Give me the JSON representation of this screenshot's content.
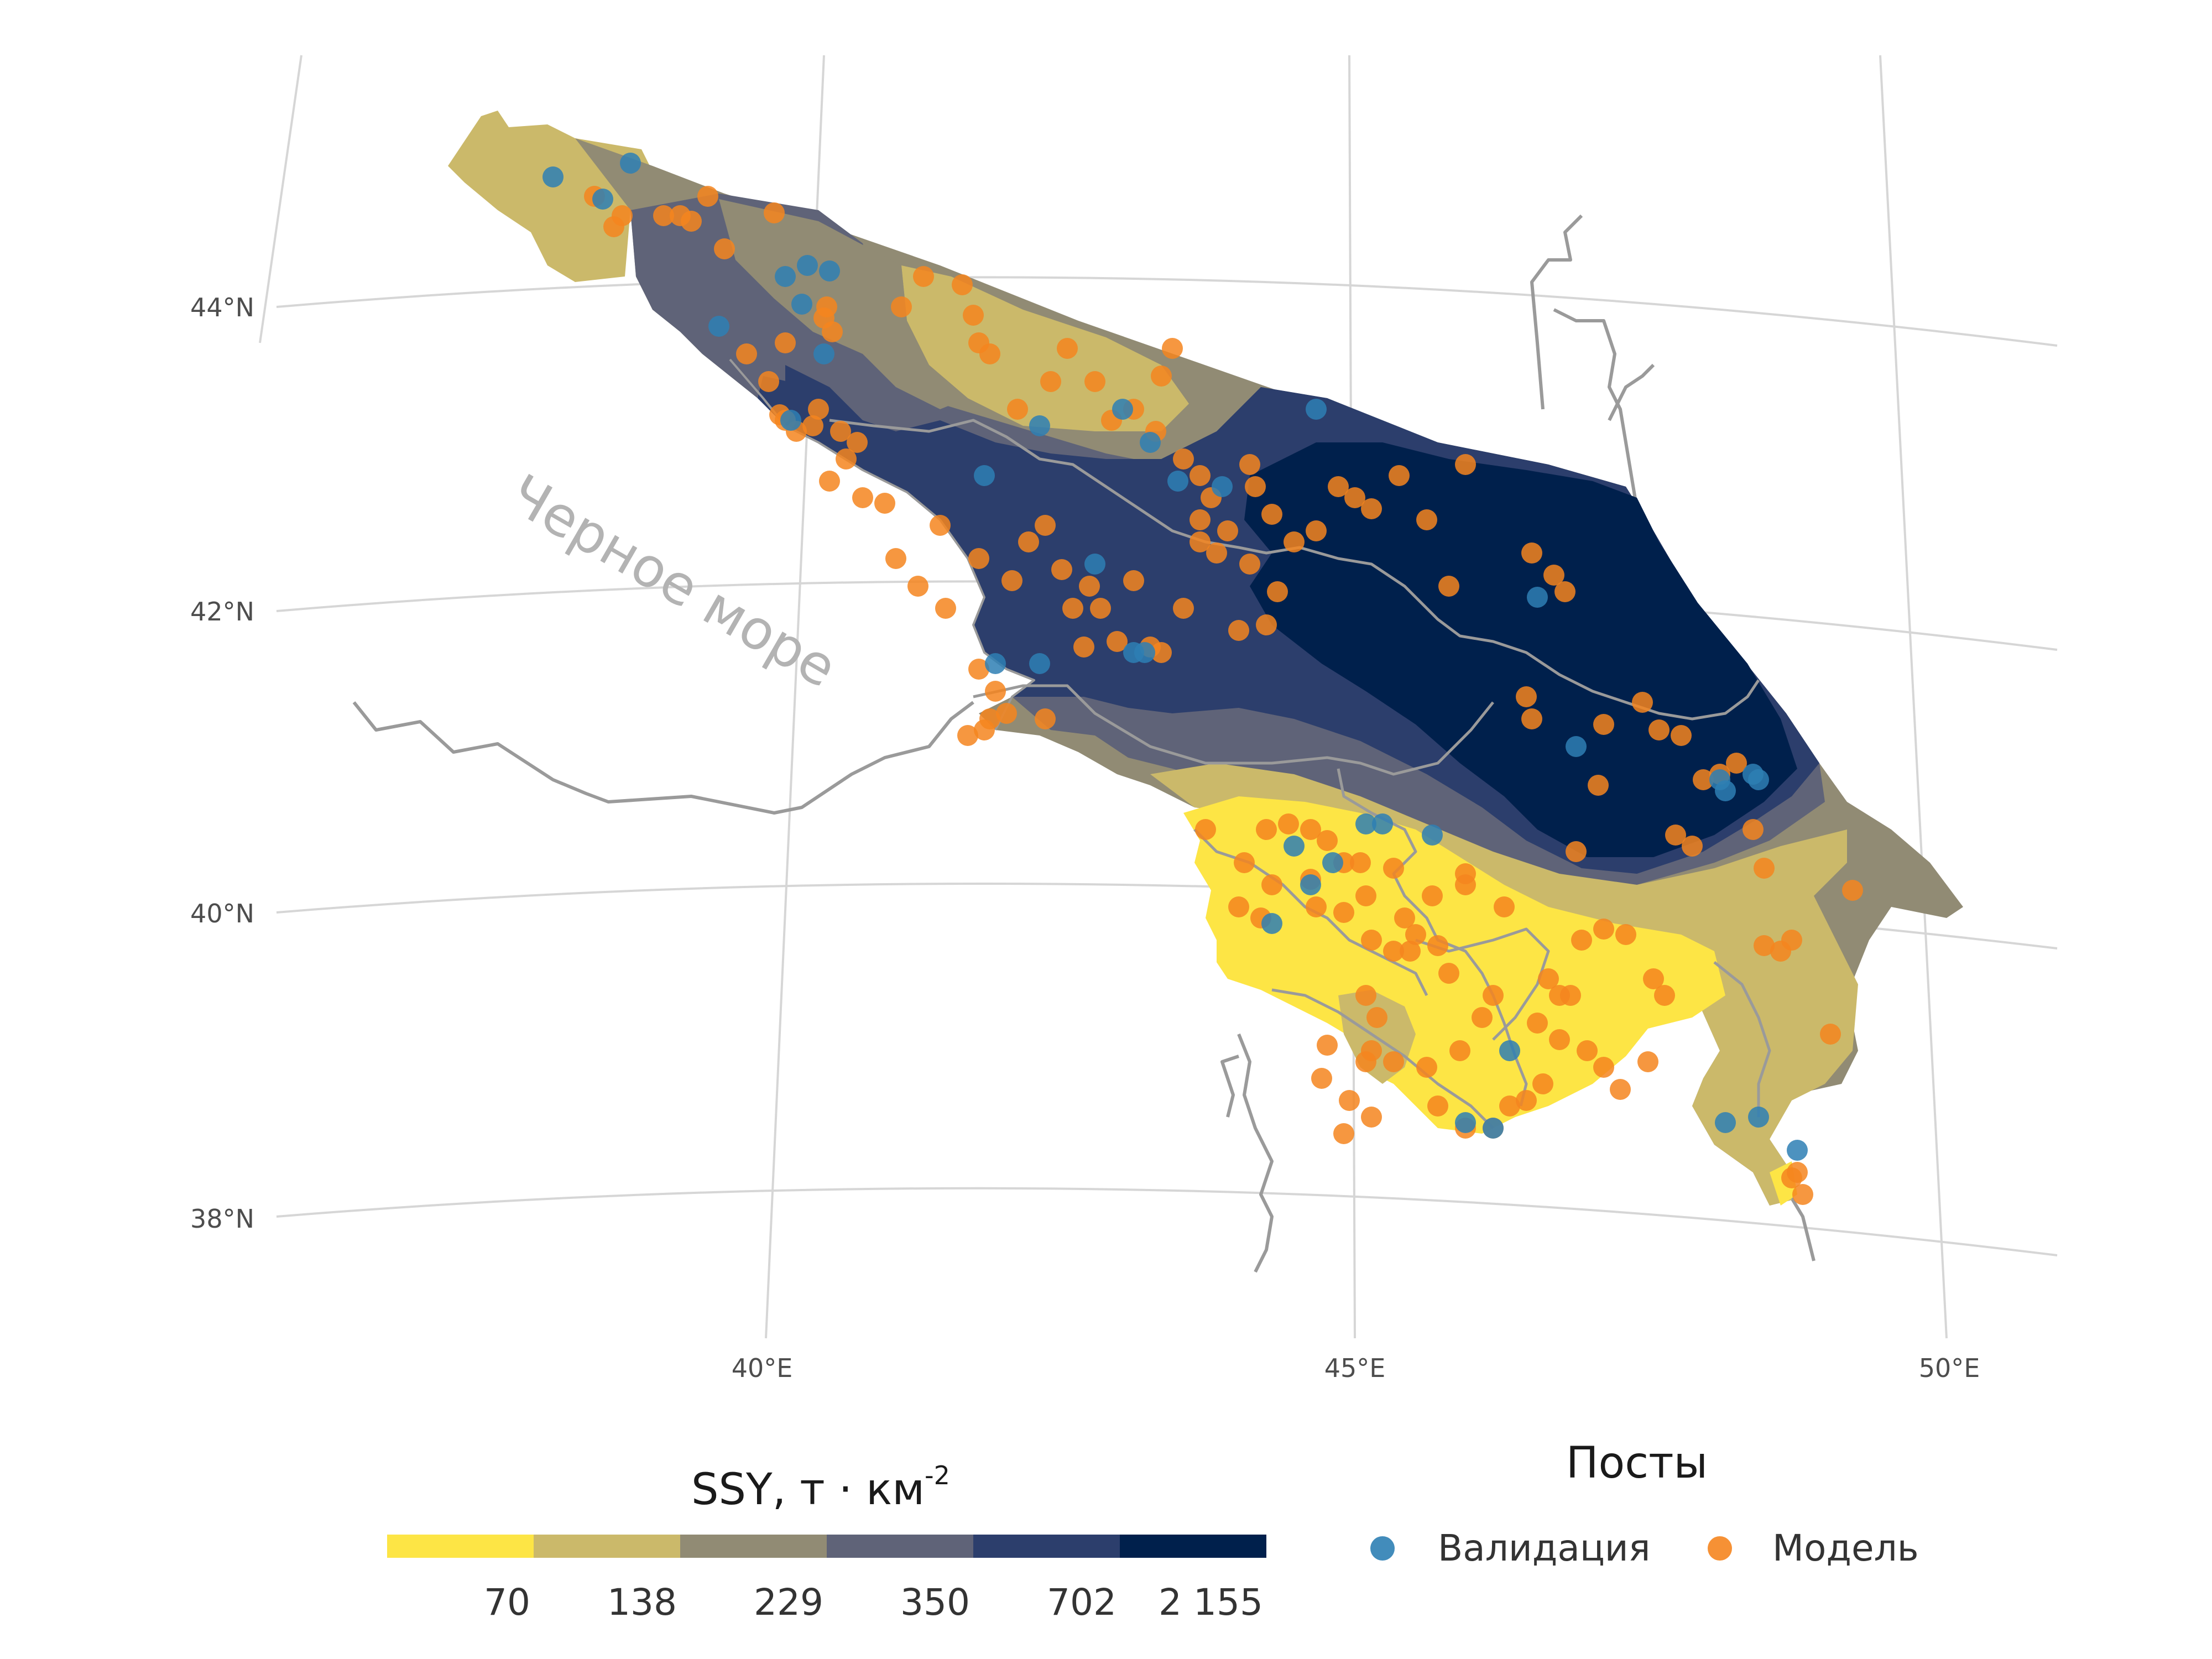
{
  "map": {
    "sea_label": "Черное море",
    "lat_labels": [
      "44°N",
      "42°N",
      "40°N",
      "38°N"
    ],
    "lon_labels": [
      "40°E",
      "45°E",
      "50°E"
    ],
    "zone_colors": [
      "#fde545",
      "#cbb96a",
      "#918b74",
      "#5f6378",
      "#2c3e6c",
      "#00204c"
    ],
    "validation_color": "#2e7fb4",
    "model_color": "#f5851f",
    "border_color": "#9a9a9a",
    "graticule_color": "#d6d6d6"
  },
  "legend_ssy": {
    "title_main": "SSY, т · км",
    "title_exp": "-2",
    "breaks": [
      "70",
      "138",
      "229",
      "350",
      "702",
      "2 155"
    ]
  },
  "legend_posts": {
    "title": "Посты",
    "items": [
      {
        "label": "Валидация",
        "color": "#2e7fb4"
      },
      {
        "label": "Модель",
        "color": "#f5851f"
      }
    ]
  }
}
